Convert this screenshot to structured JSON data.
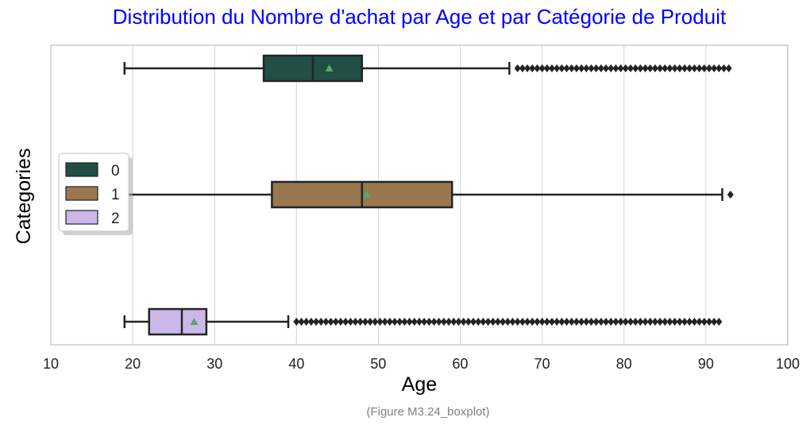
{
  "chart_data": {
    "type": "boxplot",
    "orientation": "horizontal",
    "title": "Distribution du Nombre d'achat par Age et par Catégorie de Produit",
    "title_color": "#0000ff",
    "xlabel": "Age",
    "ylabel": "Categories",
    "xlim": [
      10,
      100
    ],
    "xticks": [
      10,
      20,
      30,
      40,
      50,
      60,
      70,
      80,
      90,
      100
    ],
    "grid": "vertical",
    "legend_position": "center-left",
    "mean_marker_color": "#55a868",
    "series": [
      {
        "name": "0",
        "color": "#1f4f45",
        "whisker_low": 19,
        "q1": 36,
        "median": 42,
        "mean": 44,
        "q3": 48,
        "whisker_high": 66,
        "outliers_range": [
          67,
          93
        ]
      },
      {
        "name": "1",
        "color": "#997850",
        "whisker_low": 19,
        "q1": 37,
        "median": 48,
        "mean": 48.6,
        "q3": 59,
        "whisker_high": 92,
        "outliers_range": [
          93,
          93
        ]
      },
      {
        "name": "2",
        "color": "#cbb8e8",
        "whisker_low": 19,
        "q1": 22,
        "median": 26,
        "mean": 27.5,
        "q3": 29,
        "whisker_high": 39,
        "outliers_range": [
          40,
          92
        ]
      }
    ]
  },
  "caption": "(Figure M3.24_boxplot)"
}
